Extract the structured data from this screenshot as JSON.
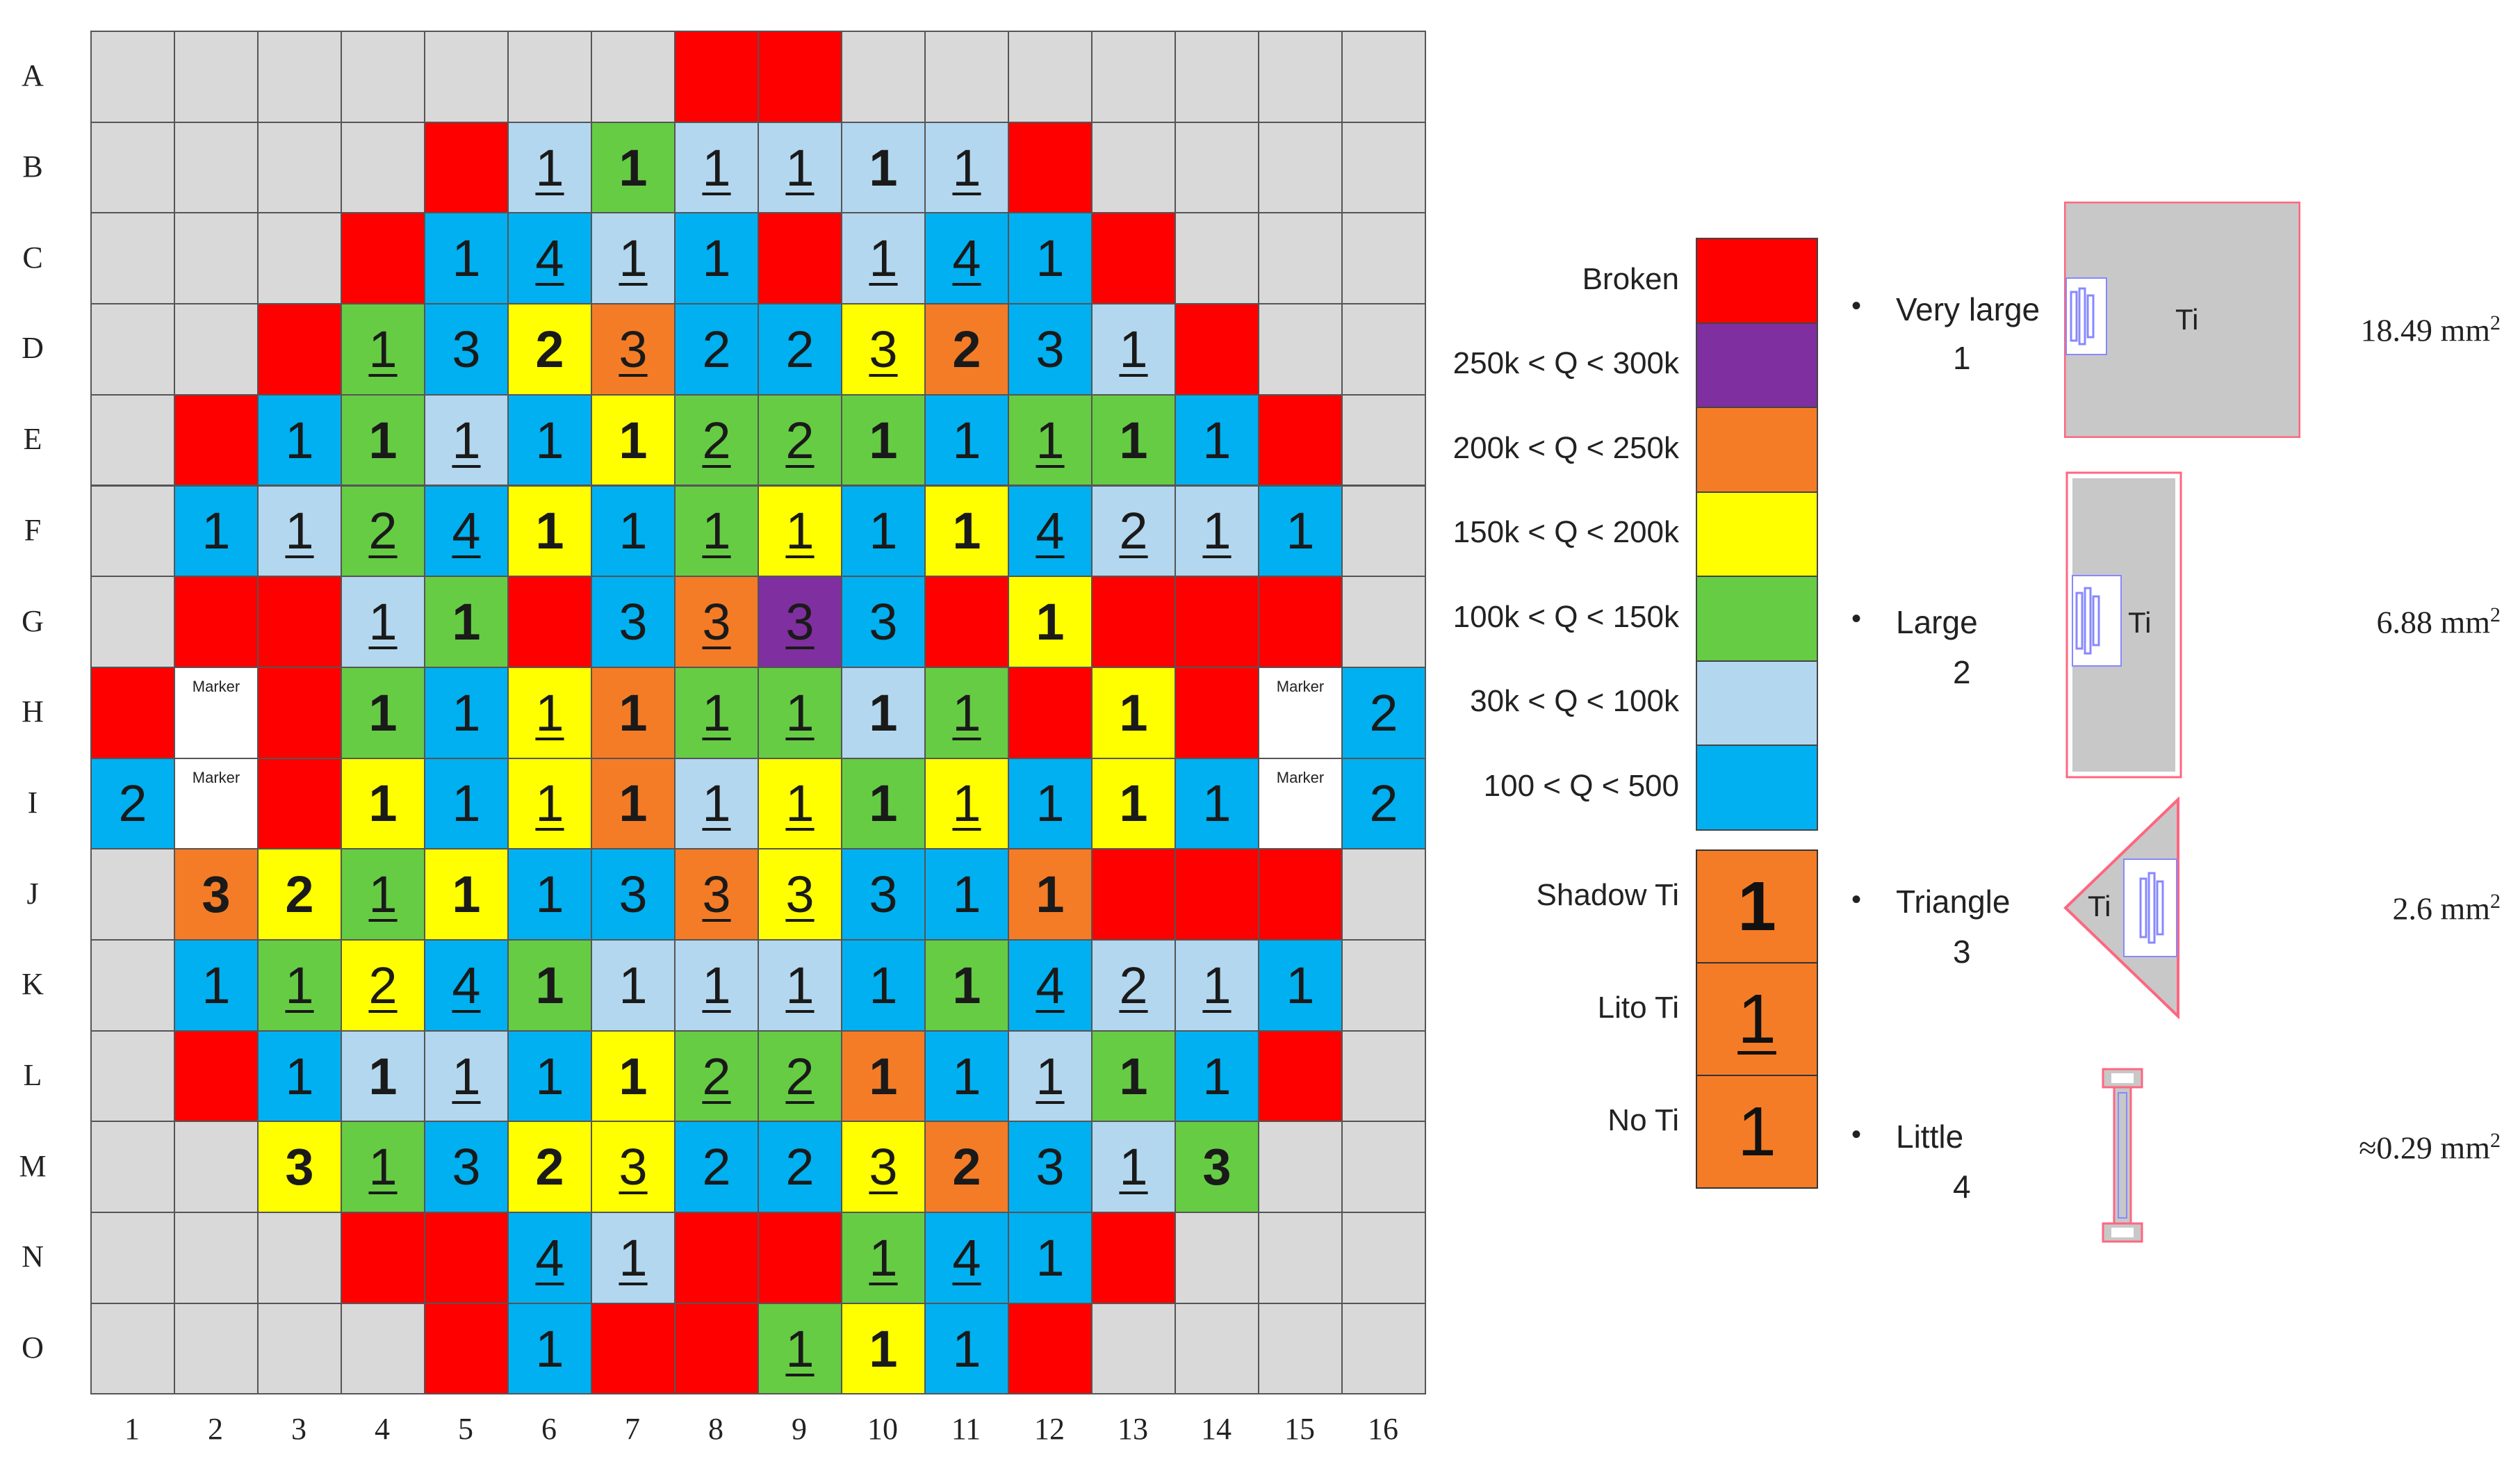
{
  "colors": {
    "broken": "#ff0000",
    "q250_300": "#7f2fa0",
    "q200_250": "#f47c26",
    "q150_200": "#ffff00",
    "q100_150": "#66cc44",
    "q30_100": "#b3d7ef",
    "q100_500": "#00b0f0",
    "none": "#d9d9d9",
    "marker": "#ffffff"
  },
  "row_labels": [
    "A",
    "B",
    "C",
    "D",
    "E",
    "F",
    "G",
    "H",
    "I",
    "J",
    "K",
    "L",
    "M",
    "N",
    "O"
  ],
  "col_labels": [
    "1",
    "2",
    "3",
    "4",
    "5",
    "6",
    "7",
    "8",
    "9",
    "10",
    "11",
    "12",
    "13",
    "14",
    "15",
    "16"
  ],
  "marker_text": "Marker",
  "grid_rows": [
    "G G G G G G G R R G G G G G G G",
    "G G G G R L1u N1b L1u L1u L1b L1u R G G G G",
    "G G G R B1 B4u L1u B1 R L1u B4u B1 R G G G",
    "G G R N1u B3 Y2b O3u B2 B2 Y3u O2b B3 L1u R G G",
    "G R B1 N1b L1u B1 Y1b N2u N2u N1b B1 N1u N1b B1 R G",
    "G B1 L1u N2u B4u Y1b B1 N1u Y1u B1 Y1b B4u L2u L1u B1 G",
    "G R R L1u N1b R B3 O3u P3u B3 R Y1b R R R G",
    "R W R N1b B1 Y1u O1b N1u N1u L1b N1u R Y1b R W B2",
    "B2 W R Y1b B1 Y1u O1b L1u Y1u N1b Y1u B1 Y1b B1 W B2",
    "G O3b Y2b N1u Y1b B1 B3 O3u Y3u B3 B1 O1b R R R G",
    "G B1 N1u Y2u B4u N1b L1 L1u L1u B1 N1b B4u L2u L1u B1 G",
    "G R B1 L1b L1u B1 Y1b N2u N2u O1b B1 L1u N1b B1 R G",
    "G G Y3b N1u B3 Y2b Y3u B2 B2 Y3u O2b B3 L1u N3b G G",
    "G G G R R B4u L1u R R N1u B4u B1 R G G G",
    "G G G G R B1 R R N1u Y1b B1 R G G G G"
  ],
  "legend": {
    "items": [
      {
        "label": "Broken",
        "color": "#ff0000"
      },
      {
        "label": "250k < Q < 300k",
        "color": "#7f2fa0"
      },
      {
        "label": "200k < Q < 250k",
        "color": "#f47c26"
      },
      {
        "label": "150k < Q < 200k",
        "color": "#ffff00"
      },
      {
        "label": "100k < Q < 150k",
        "color": "#66cc44"
      },
      {
        "label": "30k < Q < 100k",
        "color": "#b3d7ef"
      },
      {
        "label": "100 < Q < 500",
        "color": "#00b0f0"
      }
    ],
    "ti": [
      {
        "label": "Shadow Ti",
        "glyph": "1",
        "style": "bold"
      },
      {
        "label": "Lito Ti",
        "glyph": "1",
        "style": "underline"
      },
      {
        "label": "No Ti",
        "glyph": "1",
        "style": "plain"
      }
    ]
  },
  "geometries": [
    {
      "name": "Very large",
      "num": "1",
      "ti": "Ti",
      "area": "18.49 mm",
      "area_exp": "2",
      "icon": "very-large"
    },
    {
      "name": "Large",
      "num": "2",
      "ti": "Ti",
      "area": "6.88 mm",
      "area_exp": "2",
      "icon": "large"
    },
    {
      "name": "Triangle",
      "num": "3",
      "ti": "Ti",
      "area": "2.6 mm",
      "area_exp": "2",
      "icon": "triangle"
    },
    {
      "name": "Little",
      "num": "4",
      "ti": "",
      "area": "≈0.29 mm",
      "area_exp": "2",
      "icon": "little"
    }
  ],
  "bullet_char": "•"
}
